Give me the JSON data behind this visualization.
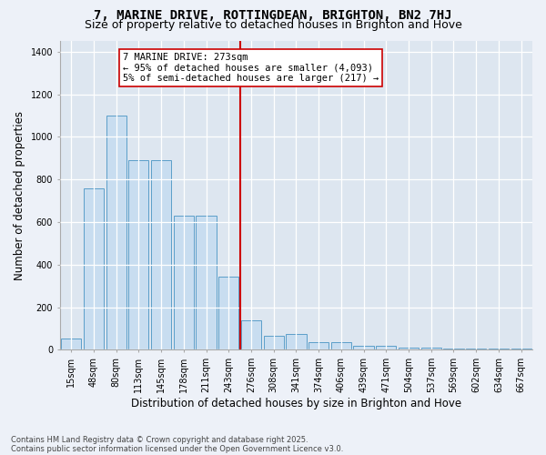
{
  "title": "7, MARINE DRIVE, ROTTINGDEAN, BRIGHTON, BN2 7HJ",
  "subtitle": "Size of property relative to detached houses in Brighton and Hove",
  "xlabel": "Distribution of detached houses by size in Brighton and Hove",
  "ylabel": "Number of detached properties",
  "categories": [
    "15sqm",
    "48sqm",
    "80sqm",
    "113sqm",
    "145sqm",
    "178sqm",
    "211sqm",
    "243sqm",
    "276sqm",
    "308sqm",
    "341sqm",
    "374sqm",
    "406sqm",
    "439sqm",
    "471sqm",
    "504sqm",
    "537sqm",
    "569sqm",
    "602sqm",
    "634sqm",
    "667sqm"
  ],
  "bar_values": [
    55,
    760,
    1100,
    890,
    890,
    630,
    630,
    345,
    140,
    65,
    75,
    35,
    35,
    20,
    20,
    10,
    10,
    5,
    5,
    5,
    5
  ],
  "bar_color": "#c8ddf0",
  "bar_edge_color": "#5b9ec9",
  "vline_index": 8,
  "vline_color": "#cc0000",
  "annotation_text": "7 MARINE DRIVE: 273sqm\n← 95% of detached houses are smaller (4,093)\n5% of semi-detached houses are larger (217) →",
  "annotation_box_facecolor": "#ffffff",
  "annotation_box_edgecolor": "#cc0000",
  "ylim": [
    0,
    1450
  ],
  "yticks": [
    0,
    200,
    400,
    600,
    800,
    1000,
    1200,
    1400
  ],
  "fig_facecolor": "#edf1f8",
  "ax_facecolor": "#dde6f0",
  "grid_color": "#ffffff",
  "footer": "Contains HM Land Registry data © Crown copyright and database right 2025.\nContains public sector information licensed under the Open Government Licence v3.0.",
  "title_fontsize": 10,
  "subtitle_fontsize": 9,
  "xlabel_fontsize": 8.5,
  "ylabel_fontsize": 8.5,
  "tick_fontsize": 7,
  "footer_fontsize": 6,
  "annotation_fontsize": 7.5
}
